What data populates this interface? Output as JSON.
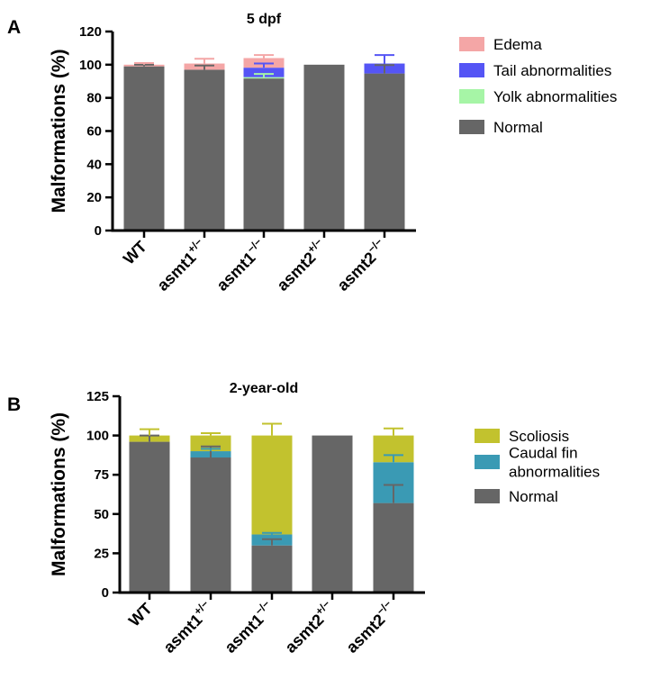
{
  "chart_data": [
    {
      "panel": "A",
      "type": "bar",
      "stacked": true,
      "title": "5 dpf",
      "ylabel": "Malformations (%)",
      "xlabel": "",
      "ylim": [
        0,
        120
      ],
      "yticks": [
        0,
        20,
        40,
        60,
        80,
        100,
        120
      ],
      "categories": [
        {
          "base": "WT",
          "sup": ""
        },
        {
          "base": "asmt1",
          "sup": "+/−"
        },
        {
          "base": "asmt1",
          "sup": "−/−"
        },
        {
          "base": "asmt2",
          "sup": "+/−"
        },
        {
          "base": "asmt2",
          "sup": "−/−"
        }
      ],
      "series": [
        {
          "name": "Normal",
          "color": "#666666",
          "values": [
            99,
            97,
            91.7,
            100,
            94.7
          ],
          "error_upper": [
            100,
            99.5,
            null,
            null,
            99.8
          ]
        },
        {
          "name": "Yolk abnormalities",
          "color": "#a6f5a6",
          "values": [
            0,
            0,
            0.8,
            0,
            0
          ],
          "error_upper": [
            null,
            null,
            94.4,
            null,
            null
          ]
        },
        {
          "name": "Tail abnormalities",
          "color": "#5555f5",
          "values": [
            0,
            0,
            5.7,
            0,
            6
          ],
          "error_upper": [
            null,
            null,
            100.7,
            null,
            105.8
          ]
        },
        {
          "name": "Edema",
          "color": "#f4a6a6",
          "values": [
            1,
            3.7,
            5.8,
            0,
            0
          ],
          "error_upper": [
            101,
            103.6,
            105.8,
            null,
            null
          ]
        }
      ],
      "legend_order": [
        "Edema",
        "Tail abnormalities",
        "Yolk abnormalities",
        "Normal"
      ],
      "legend_position": "right",
      "grid": false
    },
    {
      "panel": "B",
      "type": "bar",
      "stacked": true,
      "title": "2-year-old",
      "ylabel": "Malformations (%)",
      "xlabel": "",
      "ylim": [
        0,
        125
      ],
      "yticks": [
        0,
        25,
        50,
        75,
        100,
        125
      ],
      "categories": [
        {
          "base": "WT",
          "sup": ""
        },
        {
          "base": "asmt1",
          "sup": "+/−"
        },
        {
          "base": "asmt1",
          "sup": "−/−"
        },
        {
          "base": "asmt2",
          "sup": "+/−"
        },
        {
          "base": "asmt2",
          "sup": "−/−"
        }
      ],
      "series": [
        {
          "name": "Normal",
          "color": "#666666",
          "values": [
            96,
            86,
            30,
            100,
            57
          ],
          "error_upper": [
            100,
            93,
            34,
            null,
            68.5
          ]
        },
        {
          "name": "Caudal fin abnormalities",
          "color": "#3a9ab4",
          "values": [
            0,
            4,
            7,
            0,
            26
          ],
          "error_upper": [
            null,
            91.5,
            38,
            null,
            87.5
          ]
        },
        {
          "name": "Scoliosis",
          "color": "#c2c22e",
          "values": [
            4,
            10,
            63,
            0,
            17
          ],
          "error_upper": [
            104,
            101.5,
            107.5,
            null,
            104.5
          ]
        }
      ],
      "legend_order": [
        "Scoliosis",
        "Caudal fin abnormalities",
        "Normal"
      ],
      "legend_labels": {
        "Caudal fin abnormalities": [
          "Caudal fin",
          "abnormalities"
        ]
      },
      "legend_position": "right",
      "grid": false
    }
  ]
}
